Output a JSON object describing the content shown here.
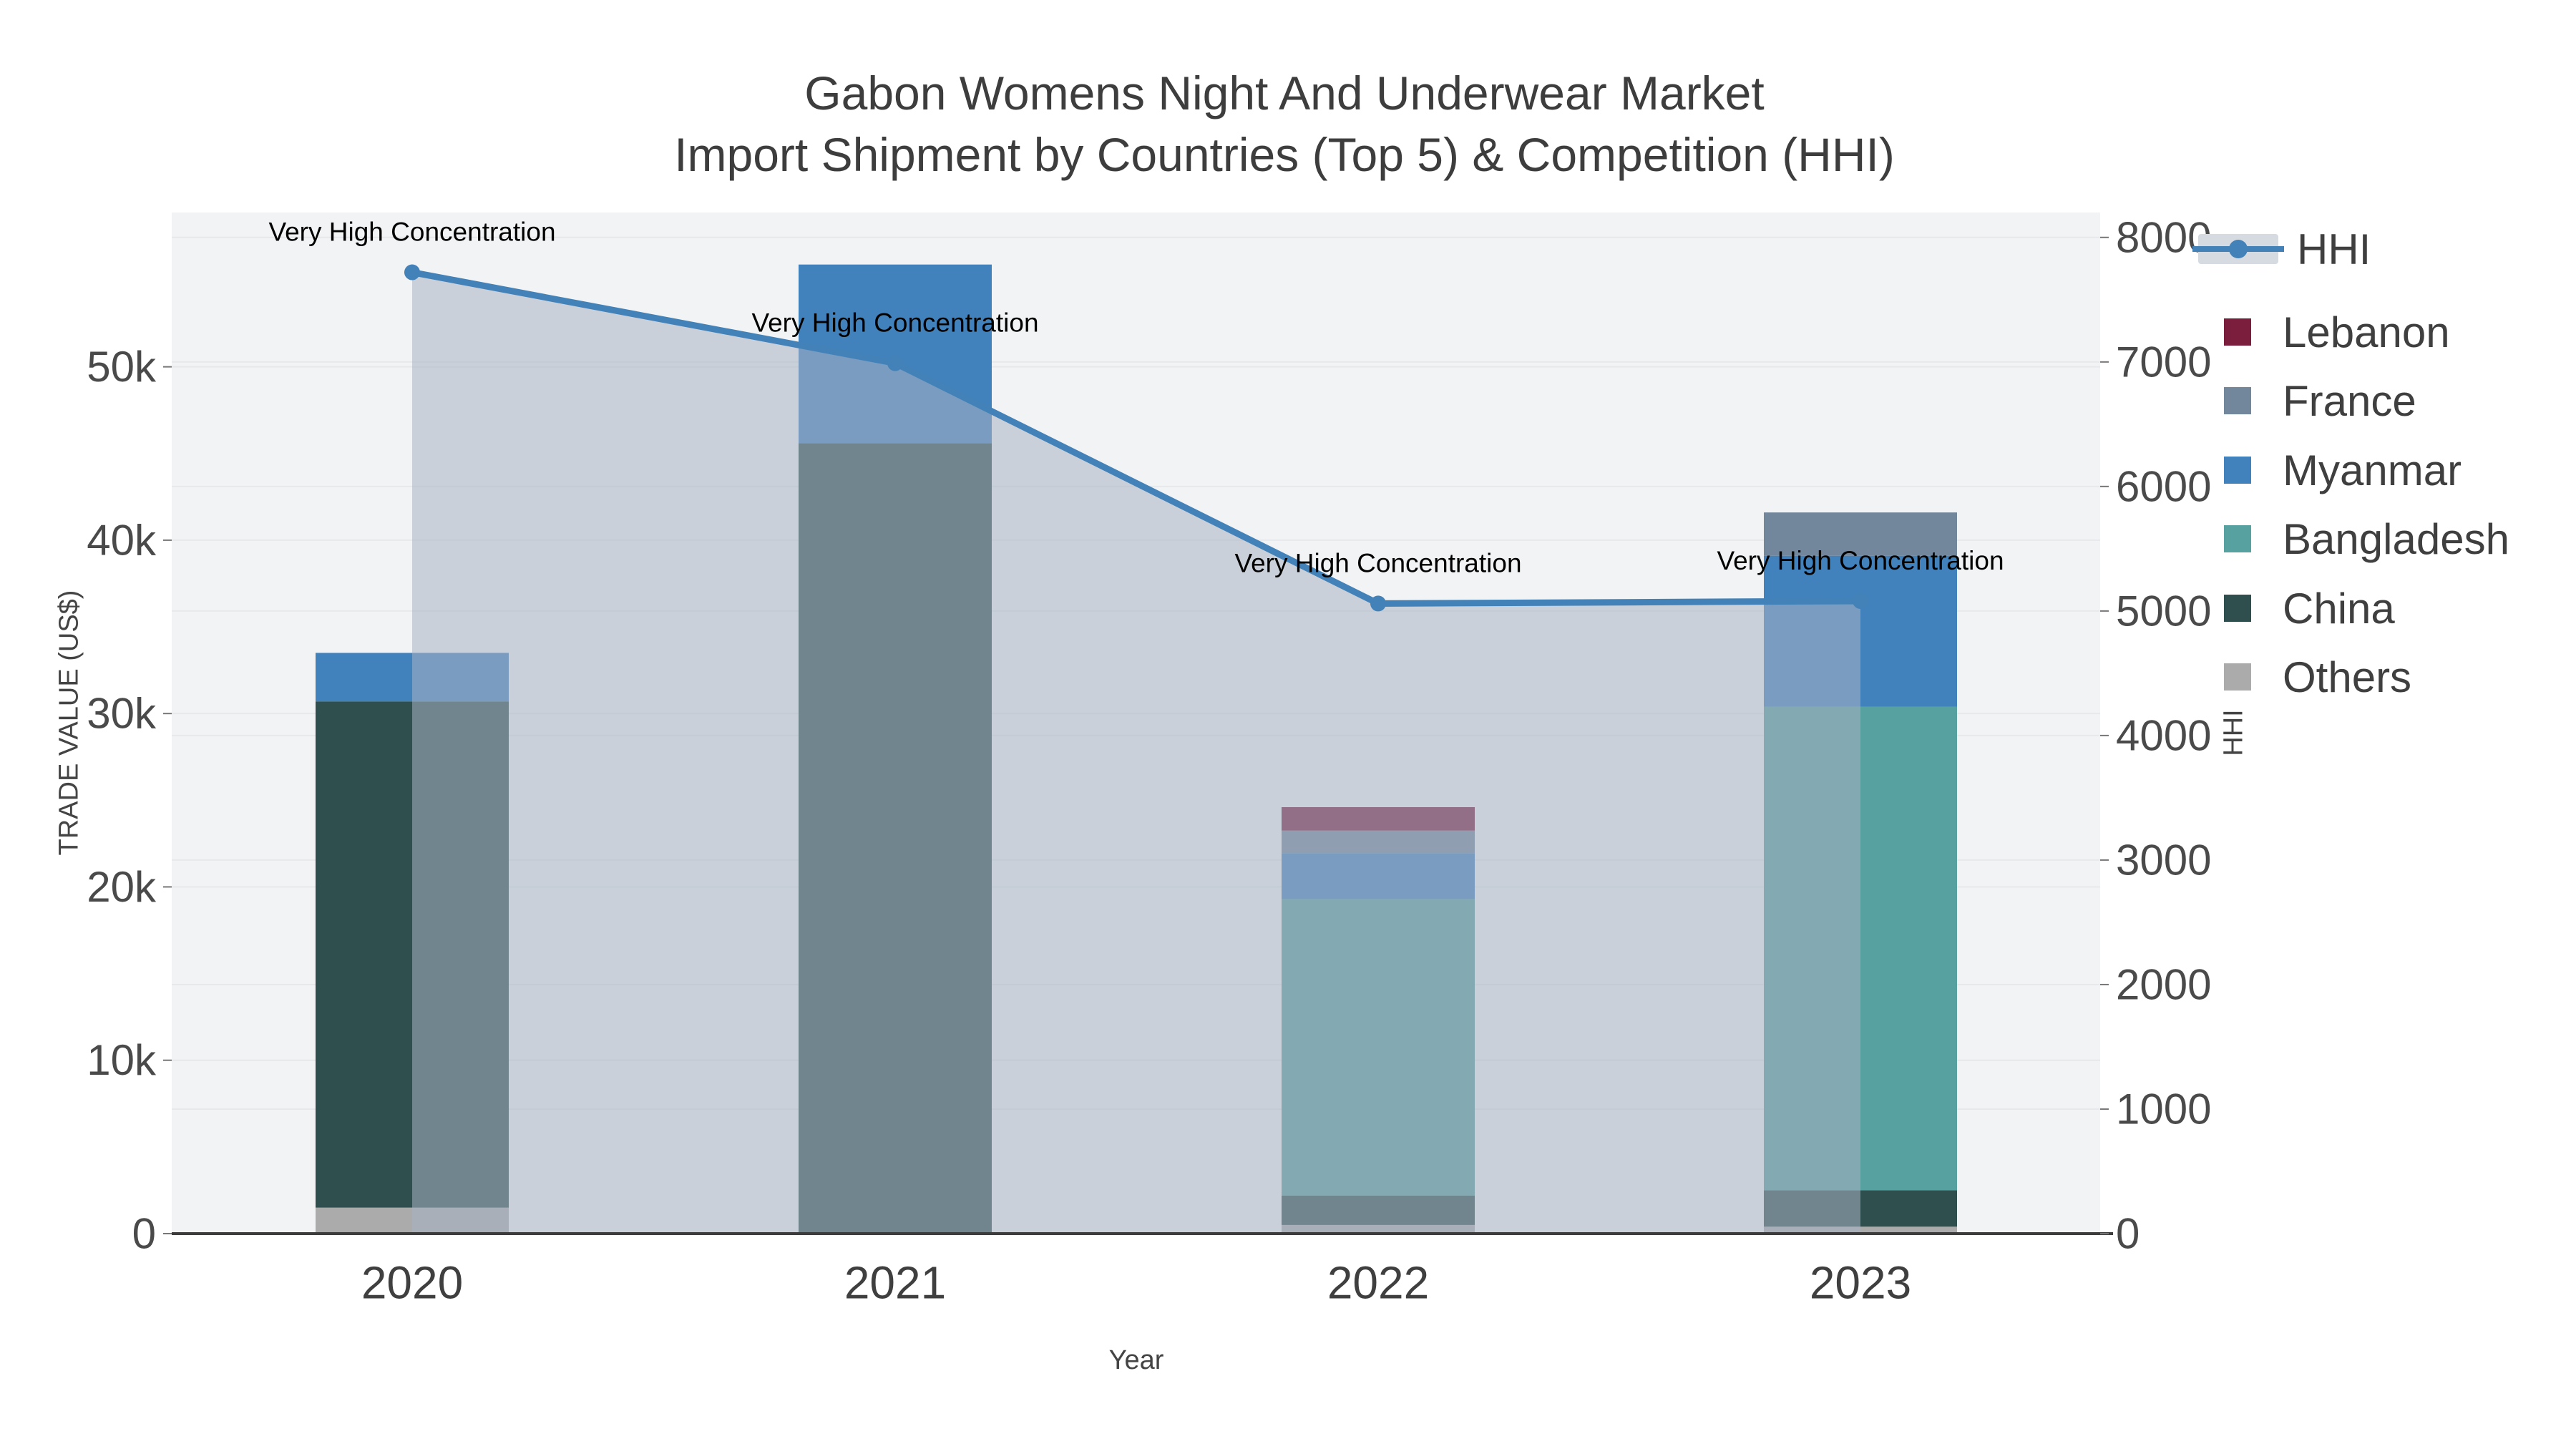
{
  "title": {
    "line1": "Gabon Womens Night And Underwear Market",
    "line2": "Import Shipment by Countries (Top 5) & Competition (HHI)"
  },
  "axes": {
    "x_title": "Year",
    "y_left_title": "TRADE VALUE (US$)",
    "y_right_title": "HHI",
    "y_left_ticks": [
      {
        "v": 0,
        "label": "0"
      },
      {
        "v": 10000,
        "label": "10k"
      },
      {
        "v": 20000,
        "label": "20k"
      },
      {
        "v": 30000,
        "label": "30k"
      },
      {
        "v": 40000,
        "label": "40k"
      },
      {
        "v": 50000,
        "label": "50k"
      }
    ],
    "y_right_ticks": [
      {
        "v": 0,
        "label": "0"
      },
      {
        "v": 1000,
        "label": "1000"
      },
      {
        "v": 2000,
        "label": "2000"
      },
      {
        "v": 3000,
        "label": "3000"
      },
      {
        "v": 4000,
        "label": "4000"
      },
      {
        "v": 5000,
        "label": "5000"
      },
      {
        "v": 6000,
        "label": "6000"
      },
      {
        "v": 7000,
        "label": "7000"
      },
      {
        "v": 8000,
        "label": "8000"
      }
    ]
  },
  "chart_data": {
    "type": "bar",
    "subtype": "stacked-bars-with-line",
    "categories": [
      "2020",
      "2021",
      "2022",
      "2023"
    ],
    "series": [
      {
        "name": "Others",
        "color": "#ababab",
        "values": [
          1500,
          0,
          500,
          400
        ]
      },
      {
        "name": "China",
        "color": "#2e4f4d",
        "values": [
          29200,
          45600,
          1700,
          2100
        ]
      },
      {
        "name": "Bangladesh",
        "color": "#58a1a1",
        "values": [
          0,
          0,
          17100,
          27900
        ]
      },
      {
        "name": "Myanmar",
        "color": "#4282bc",
        "values": [
          2800,
          10300,
          2650,
          8700
        ]
      },
      {
        "name": "France",
        "color": "#72879b",
        "values": [
          0,
          0,
          1300,
          2500
        ]
      },
      {
        "name": "Lebanon",
        "color": "#7b1e3e",
        "values": [
          0,
          0,
          1350,
          0
        ]
      }
    ],
    "line_series": {
      "name": "HHI",
      "axis": "right",
      "values": [
        7720,
        6990,
        5060,
        5080
      ],
      "color": "#4282b8",
      "fill_color": "rgba(168,178,195,0.55)"
    },
    "annotations": [
      "Very High Concentration",
      "Very High Concentration",
      "Very High Concentration",
      "Very High Concentration"
    ],
    "title": "Gabon Womens Night And Underwear Market Import Shipment by Countries (Top 5) & Competition (HHI)",
    "xlabel": "Year",
    "ylabel": "TRADE VALUE (US$)",
    "ylabel_right": "HHI",
    "ylim_left": [
      0,
      58900
    ],
    "ylim_right": [
      0,
      8200
    ],
    "grid": true,
    "legend_position": "right",
    "plot_bg": "#f2f3f4",
    "grid_color": "#e6e8eb",
    "axis_line_color": "#3c3c3c"
  },
  "legend": {
    "items": [
      {
        "label": "HHI",
        "type": "line",
        "color": "#4282b8"
      },
      {
        "label": "Lebanon",
        "type": "square",
        "color": "#7b1e3e"
      },
      {
        "label": "France",
        "type": "square",
        "color": "#72879b"
      },
      {
        "label": "Myanmar",
        "type": "square",
        "color": "#4282bc"
      },
      {
        "label": "Bangladesh",
        "type": "square",
        "color": "#58a1a1"
      },
      {
        "label": "China",
        "type": "square",
        "color": "#2e4f4d"
      },
      {
        "label": "Others",
        "type": "square",
        "color": "#ababab"
      }
    ]
  }
}
